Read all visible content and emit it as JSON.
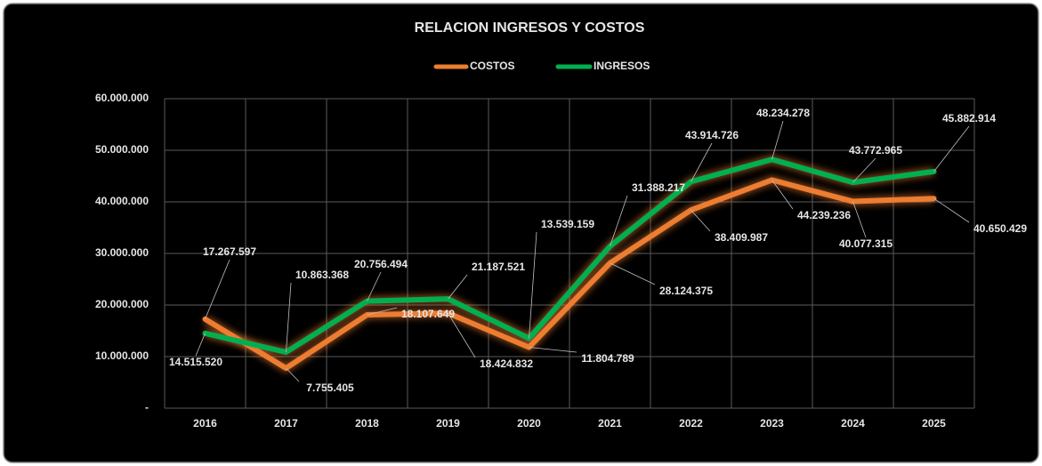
{
  "chart_data": {
    "type": "line",
    "title": "RELACION INGRESOS Y COSTOS",
    "categories": [
      "2016",
      "2017",
      "2018",
      "2019",
      "2020",
      "2021",
      "2022",
      "2023",
      "2024",
      "2025"
    ],
    "series": [
      {
        "name": "COSTOS",
        "color": "#ed7d31",
        "values": [
          17267597,
          7755405,
          18107649,
          18424832,
          11804789,
          28124375,
          38409987,
          44239236,
          40077315,
          40650429
        ],
        "value_labels": [
          "17.267.597",
          "7.755.405",
          "18.107.649",
          "18.424.832",
          "11.804.789",
          "28.124.375",
          "38.409.987",
          "44.239.236",
          "40.077.315",
          "40.650.429"
        ]
      },
      {
        "name": "INGRESOS",
        "color": "#00b050",
        "values": [
          14515520,
          10863368,
          20756494,
          21187521,
          13539159,
          31388217,
          43914726,
          48234278,
          43772965,
          45882914
        ],
        "value_labels": [
          "14.515.520",
          "10.863.368",
          "20.756.494",
          "21.187.521",
          "13.539.159",
          "31.388.217",
          "43.914.726",
          "48.234.278",
          "43.772.965",
          "45.882.914"
        ]
      }
    ],
    "ylim": [
      0,
      60000000
    ],
    "yticks": [
      {
        "value": 0,
        "label": "-"
      },
      {
        "value": 10000000,
        "label": "10.000.000"
      },
      {
        "value": 20000000,
        "label": "20.000.000"
      },
      {
        "value": 30000000,
        "label": "30.000.000"
      },
      {
        "value": 40000000,
        "label": "40.000.000"
      },
      {
        "value": 50000000,
        "label": "50.000.000"
      },
      {
        "value": 60000000,
        "label": "60.000.000"
      }
    ],
    "grid": true,
    "legend": "top"
  }
}
